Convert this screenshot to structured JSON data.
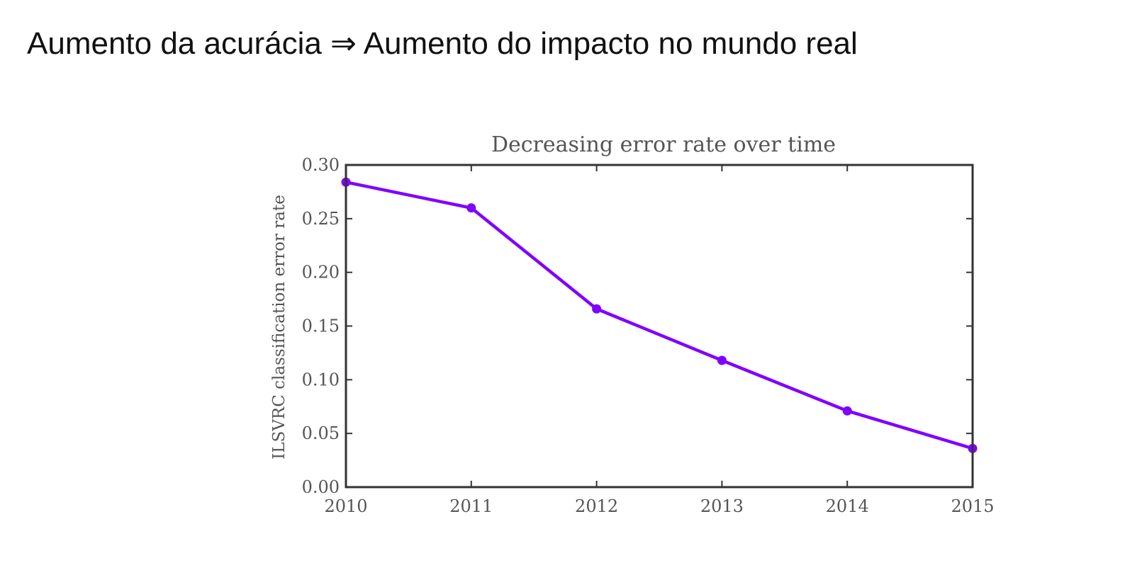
{
  "slide": {
    "title": "Aumento da acurácia ⇒ Aumento do impacto no mundo real"
  },
  "chart_data": {
    "type": "line",
    "title": "Decreasing error rate over time",
    "xlabel": "",
    "ylabel": "ILSVRC classification error rate",
    "x": [
      2010,
      2011,
      2012,
      2013,
      2014,
      2015
    ],
    "series": [
      {
        "values": [
          0.284,
          0.26,
          0.166,
          0.118,
          0.071,
          0.036
        ],
        "color": "#8000ff"
      }
    ],
    "xlim": [
      2010,
      2015
    ],
    "ylim": [
      0.0,
      0.3
    ],
    "xticks": [
      "2010",
      "2011",
      "2012",
      "2013",
      "2014",
      "2015"
    ],
    "yticks": [
      "0.00",
      "0.05",
      "0.10",
      "0.15",
      "0.20",
      "0.25",
      "0.30"
    ],
    "grid": false,
    "legend": "none"
  }
}
